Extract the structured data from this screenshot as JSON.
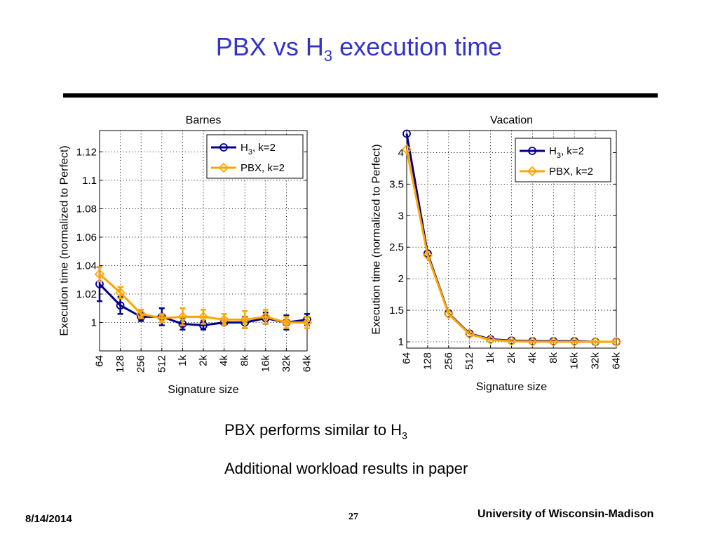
{
  "slide": {
    "title_main": "PBX vs H",
    "title_sub": "3",
    "title_rest": " execution time",
    "bullets": [
      {
        "main": "PBX performs similar to H",
        "sub": "3"
      },
      {
        "main": "Additional workload results in paper",
        "sub": ""
      }
    ],
    "footer": {
      "date": "8/14/2014",
      "page": "27",
      "institution": "University of Wisconsin-Madison"
    }
  },
  "chart_data": [
    {
      "type": "line",
      "title": "Barnes",
      "xlabel": "Signature size",
      "ylabel": "Execution time (normalized to Perfect)",
      "categories": [
        "64",
        "128",
        "256",
        "512",
        "1k",
        "2k",
        "4k",
        "8k",
        "16k",
        "32k",
        "64k"
      ],
      "ylim": [
        0.98,
        1.135
      ],
      "yticks": [
        1,
        1.02,
        1.04,
        1.06,
        1.08,
        1.1,
        1.12
      ],
      "ytick_labels": [
        "1",
        "1.02",
        "1.04",
        "1.06",
        "1.08",
        "1.1",
        "1.12"
      ],
      "grid": "dotted",
      "legend": "top-right",
      "series": [
        {
          "name_main": "H",
          "name_sub": "3",
          "name_rest": ", k=2",
          "color": "#00008b",
          "marker": "circle",
          "values": [
            1.027,
            1.012,
            1.004,
            1.004,
            0.999,
            0.998,
            1.0,
            1.0,
            1.003,
            1.0,
            1.002
          ],
          "errors": [
            0.012,
            0.006,
            0.003,
            0.006,
            0.004,
            0.003,
            0.002,
            0.004,
            0.004,
            0.005,
            0.004
          ]
        },
        {
          "name_main": "PBX",
          "name_sub": "",
          "name_rest": ", k=2",
          "color": "#ffa500",
          "marker": "diamond",
          "values": [
            1.034,
            1.021,
            1.006,
            1.003,
            1.004,
            1.004,
            1.002,
            1.002,
            1.004,
            1.0,
            1.0
          ],
          "errors": [
            0.005,
            0.004,
            0.003,
            0.003,
            0.006,
            0.005,
            0.004,
            0.006,
            0.005,
            0.004,
            0.004
          ]
        }
      ]
    },
    {
      "type": "line",
      "title": "Vacation",
      "xlabel": "Signature size",
      "ylabel": "Execution time (normalized to Perfect)",
      "categories": [
        "64",
        "128",
        "256",
        "512",
        "1k",
        "2k",
        "4k",
        "8k",
        "16k",
        "32k",
        "64k"
      ],
      "ylim": [
        0.9,
        4.35
      ],
      "yticks": [
        1,
        1.5,
        2,
        2.5,
        3,
        3.5,
        4
      ],
      "ytick_labels": [
        "1",
        "1.5",
        "2",
        "2.5",
        "3",
        "3.5",
        "4"
      ],
      "grid": "dotted",
      "legend": "top-right",
      "series": [
        {
          "name_main": "H",
          "name_sub": "3",
          "name_rest": ", k=2",
          "color": "#00008b",
          "marker": "circle",
          "values": [
            4.3,
            2.4,
            1.45,
            1.13,
            1.04,
            1.02,
            1.01,
            1.01,
            1.01,
            1.0,
            1.0
          ]
        },
        {
          "name_main": "PBX",
          "name_sub": "",
          "name_rest": ", k=2",
          "color": "#ffa500",
          "marker": "diamond",
          "values": [
            4.05,
            2.37,
            1.44,
            1.12,
            1.03,
            1.01,
            1.0,
            1.0,
            1.0,
            1.0,
            1.0
          ]
        }
      ]
    }
  ]
}
